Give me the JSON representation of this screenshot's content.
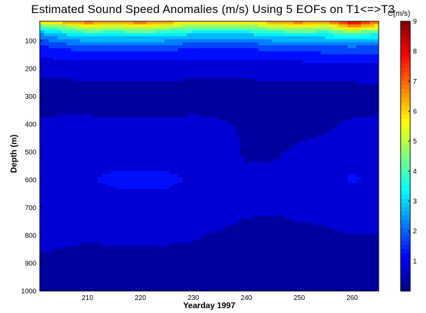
{
  "chart_data": {
    "type": "heatmap",
    "title": "Estimated Sound Speed Anomalies (m/s) Using 5 EOFs on T1<=>T3",
    "xlabel": "Yearday 1997",
    "ylabel": "Depth (m)",
    "colorbar_label": "C(m/s)",
    "xlim": [
      201,
      265
    ],
    "ylim": [
      1000,
      30
    ],
    "y_inverted": true,
    "x_ticks": [
      210,
      220,
      230,
      240,
      250,
      260
    ],
    "y_ticks": [
      100,
      200,
      300,
      400,
      500,
      600,
      700,
      800,
      900,
      1000
    ],
    "color_scale": {
      "min": 0,
      "max": 9,
      "ticks": [
        1,
        2,
        3,
        4,
        5,
        6,
        7,
        8,
        9
      ],
      "colormap": "jet",
      "contour_levels": [
        0.5,
        1,
        1.5,
        2,
        2.5,
        3,
        3.5,
        4,
        4.5,
        5,
        5.5,
        6,
        6.5,
        7,
        7.5,
        8
      ]
    },
    "x": [
      201,
      205,
      210,
      215,
      220,
      225,
      230,
      235,
      240,
      245,
      250,
      255,
      260,
      265
    ],
    "depth": [
      30,
      50,
      75,
      100,
      125,
      150,
      200,
      300,
      400,
      500,
      600,
      700,
      800,
      900,
      1000
    ],
    "values": [
      [
        6.0,
        6.5,
        7.0,
        6.5,
        7.0,
        6.5,
        6.0,
        6.0,
        6.0,
        6.5,
        7.0,
        6.5,
        8.5,
        7.0
      ],
      [
        4.0,
        4.5,
        5.5,
        5.0,
        5.5,
        5.0,
        4.5,
        4.5,
        4.5,
        5.0,
        5.5,
        5.0,
        6.5,
        5.5
      ],
      [
        2.5,
        3.0,
        3.5,
        3.5,
        3.5,
        3.5,
        3.0,
        3.0,
        3.0,
        3.5,
        3.5,
        3.5,
        4.0,
        3.5
      ],
      [
        1.8,
        2.2,
        2.6,
        2.5,
        2.6,
        2.5,
        2.2,
        2.2,
        2.2,
        2.5,
        2.6,
        2.6,
        2.8,
        2.6
      ],
      [
        1.4,
        1.5,
        1.8,
        1.7,
        1.8,
        1.7,
        1.5,
        1.5,
        1.5,
        1.7,
        1.8,
        1.8,
        1.9,
        1.8
      ],
      [
        1.1,
        1.2,
        1.3,
        1.3,
        1.3,
        1.3,
        1.2,
        1.2,
        1.2,
        1.3,
        1.3,
        1.4,
        1.4,
        1.4
      ],
      [
        0.6,
        0.6,
        0.7,
        0.7,
        0.7,
        0.7,
        0.6,
        0.6,
        0.6,
        0.7,
        0.7,
        0.7,
        0.7,
        0.8
      ],
      [
        0.3,
        0.3,
        0.3,
        0.3,
        0.3,
        0.3,
        0.3,
        0.3,
        0.3,
        0.3,
        0.3,
        0.3,
        0.3,
        0.3
      ],
      [
        0.55,
        0.6,
        0.6,
        0.55,
        0.55,
        0.55,
        0.6,
        0.55,
        0.45,
        0.4,
        0.4,
        0.45,
        0.55,
        0.6
      ],
      [
        0.7,
        0.75,
        0.75,
        0.75,
        0.75,
        0.75,
        0.75,
        0.7,
        0.45,
        0.45,
        0.55,
        0.6,
        0.7,
        0.75
      ],
      [
        0.95,
        0.7,
        0.95,
        1.1,
        1.1,
        1.1,
        0.95,
        0.7,
        0.6,
        0.6,
        0.65,
        0.7,
        1.1,
        0.75
      ],
      [
        0.5,
        0.6,
        0.7,
        0.75,
        0.75,
        0.75,
        0.75,
        0.7,
        0.6,
        0.55,
        0.6,
        0.6,
        0.65,
        0.6
      ],
      [
        0.6,
        0.6,
        0.55,
        0.6,
        0.6,
        0.6,
        0.55,
        0.45,
        0.35,
        0.35,
        0.4,
        0.45,
        0.5,
        0.5
      ],
      [
        0.45,
        0.4,
        0.35,
        0.35,
        0.35,
        0.3,
        0.3,
        0.3,
        0.25,
        0.25,
        0.25,
        0.3,
        0.3,
        0.3
      ],
      [
        0.3,
        0.25,
        0.25,
        0.25,
        0.25,
        0.25,
        0.25,
        0.25,
        0.2,
        0.2,
        0.2,
        0.2,
        0.2,
        0.2
      ]
    ],
    "grid": false,
    "legend": "colorbar-right"
  }
}
